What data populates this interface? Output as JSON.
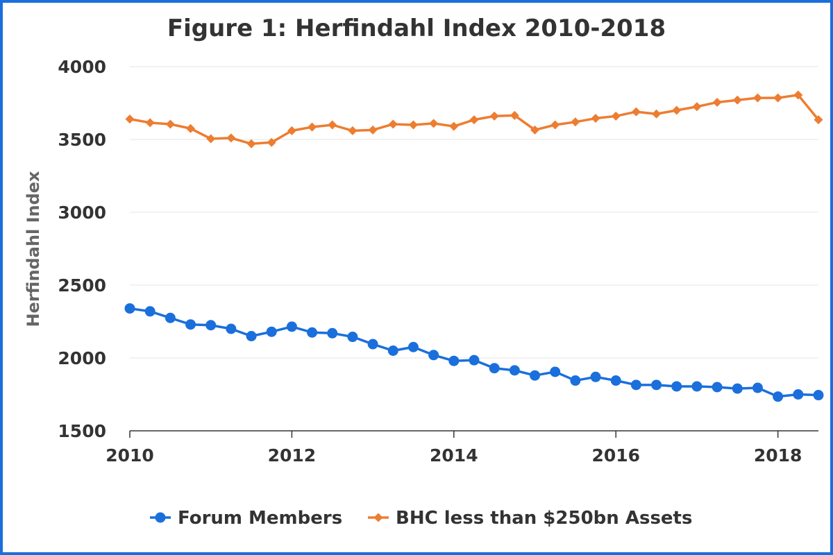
{
  "chart_data": {
    "type": "line",
    "title": "Figure 1: Herfindahl Index 2010-2018",
    "xlabel": "",
    "ylabel": "Herfindahl Index",
    "xlim": [
      2010,
      2018.5
    ],
    "ylim": [
      1500,
      4000
    ],
    "x_ticks": [
      2010,
      2012,
      2014,
      2016,
      2018
    ],
    "y_ticks": [
      1500,
      2000,
      2500,
      3000,
      3500,
      4000
    ],
    "grid": true,
    "legend_position": "bottom",
    "x": [
      2010,
      2010.25,
      2010.5,
      2010.75,
      2011,
      2011.25,
      2011.5,
      2011.75,
      2012,
      2012.25,
      2012.5,
      2012.75,
      2013,
      2013.25,
      2013.5,
      2013.75,
      2014,
      2014.25,
      2014.5,
      2014.75,
      2015,
      2015.25,
      2015.5,
      2015.75,
      2016,
      2016.25,
      2016.5,
      2016.75,
      2017,
      2017.25,
      2017.5,
      2017.75,
      2018,
      2018.25,
      2018.5
    ],
    "series": [
      {
        "name": "Forum Members",
        "color": "#1a6fdc",
        "marker": "circle",
        "values": [
          2340,
          2320,
          2275,
          2230,
          2225,
          2200,
          2150,
          2180,
          2215,
          2175,
          2170,
          2145,
          2095,
          2050,
          2075,
          2020,
          1980,
          1985,
          1930,
          1915,
          1880,
          1905,
          1845,
          1870,
          1845,
          1815,
          1815,
          1805,
          1805,
          1800,
          1790,
          1795,
          1735,
          1750,
          1745
        ]
      },
      {
        "name": "BHC less than $250bn Assets",
        "color": "#ed7d31",
        "marker": "diamond",
        "values": [
          3640,
          3615,
          3605,
          3575,
          3505,
          3510,
          3470,
          3480,
          3560,
          3585,
          3600,
          3560,
          3565,
          3605,
          3600,
          3610,
          3590,
          3635,
          3660,
          3665,
          3565,
          3600,
          3620,
          3645,
          3660,
          3690,
          3675,
          3700,
          3725,
          3755,
          3770,
          3785,
          3785,
          3805,
          3635
        ]
      }
    ]
  }
}
